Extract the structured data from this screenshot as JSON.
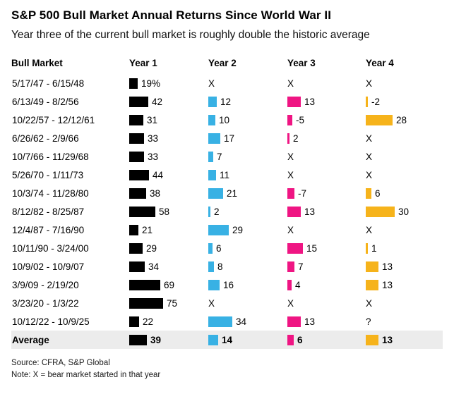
{
  "header": {
    "title": "S&P 500 Bull Market Annual Returns Since World War II",
    "subtitle": "Year three of the current bull market is roughly double the historic average"
  },
  "table": {
    "columns": [
      "Bull Market",
      "Year 1",
      "Year 2",
      "Year 3",
      "Year 4"
    ],
    "rows": [
      {
        "period": "5/17/47 - 6/15/48",
        "average": false,
        "cells": [
          {
            "v": 19,
            "d": "19%"
          },
          {
            "d": "X"
          },
          {
            "d": "X"
          },
          {
            "d": "X"
          }
        ]
      },
      {
        "period": "6/13/49 - 8/2/56",
        "average": false,
        "cells": [
          {
            "v": 42,
            "d": "42"
          },
          {
            "v": 12,
            "d": "12"
          },
          {
            "v": 13,
            "d": "13"
          },
          {
            "v": -2,
            "d": "-2"
          }
        ]
      },
      {
        "period": "10/22/57 - 12/12/61",
        "average": false,
        "cells": [
          {
            "v": 31,
            "d": "31"
          },
          {
            "v": 10,
            "d": "10"
          },
          {
            "v": -5,
            "d": "-5"
          },
          {
            "v": 28,
            "d": "28"
          }
        ]
      },
      {
        "period": "6/26/62 - 2/9/66",
        "average": false,
        "cells": [
          {
            "v": 33,
            "d": "33"
          },
          {
            "v": 17,
            "d": "17"
          },
          {
            "v": 2,
            "d": "2"
          },
          {
            "d": "X"
          }
        ]
      },
      {
        "period": "10/7/66 - 11/29/68",
        "average": false,
        "cells": [
          {
            "v": 33,
            "d": "33"
          },
          {
            "v": 7,
            "d": "7"
          },
          {
            "d": "X"
          },
          {
            "d": "X"
          }
        ]
      },
      {
        "period": "5/26/70 - 1/11/73",
        "average": false,
        "cells": [
          {
            "v": 44,
            "d": "44"
          },
          {
            "v": 11,
            "d": "11"
          },
          {
            "d": "X"
          },
          {
            "d": "X"
          }
        ]
      },
      {
        "period": "10/3/74 - 11/28/80",
        "average": false,
        "cells": [
          {
            "v": 38,
            "d": "38"
          },
          {
            "v": 21,
            "d": "21"
          },
          {
            "v": -7,
            "d": "-7"
          },
          {
            "v": 6,
            "d": "6"
          }
        ]
      },
      {
        "period": "8/12/82 - 8/25/87",
        "average": false,
        "cells": [
          {
            "v": 58,
            "d": "58"
          },
          {
            "v": 2,
            "d": "2"
          },
          {
            "v": 13,
            "d": "13"
          },
          {
            "v": 30,
            "d": "30"
          }
        ]
      },
      {
        "period": "12/4/87 - 7/16/90",
        "average": false,
        "cells": [
          {
            "v": 21,
            "d": "21"
          },
          {
            "v": 29,
            "d": "29"
          },
          {
            "d": "X"
          },
          {
            "d": "X"
          }
        ]
      },
      {
        "period": "10/11/90 - 3/24/00",
        "average": false,
        "cells": [
          {
            "v": 29,
            "d": "29"
          },
          {
            "v": 6,
            "d": "6"
          },
          {
            "v": 15,
            "d": "15"
          },
          {
            "v": 1,
            "d": "1"
          }
        ]
      },
      {
        "period": "10/9/02 - 10/9/07",
        "average": false,
        "cells": [
          {
            "v": 34,
            "d": "34"
          },
          {
            "v": 8,
            "d": "8"
          },
          {
            "v": 7,
            "d": "7"
          },
          {
            "v": 13,
            "d": "13"
          }
        ]
      },
      {
        "period": "3/9/09 - 2/19/20",
        "average": false,
        "cells": [
          {
            "v": 69,
            "d": "69"
          },
          {
            "v": 16,
            "d": "16"
          },
          {
            "v": 4,
            "d": "4"
          },
          {
            "v": 13,
            "d": "13"
          }
        ]
      },
      {
        "period": "3/23/20 - 1/3/22",
        "average": false,
        "cells": [
          {
            "v": 75,
            "d": "75"
          },
          {
            "d": "X"
          },
          {
            "d": "X"
          },
          {
            "d": "X"
          }
        ]
      },
      {
        "period": "10/12/22 - 10/9/25",
        "average": false,
        "cells": [
          {
            "v": 22,
            "d": "22"
          },
          {
            "v": 34,
            "d": "34"
          },
          {
            "v": 13,
            "d": "13"
          },
          {
            "d": "?"
          }
        ]
      },
      {
        "period": "Average",
        "average": true,
        "cells": [
          {
            "v": 39,
            "d": "39"
          },
          {
            "v": 14,
            "d": "14"
          },
          {
            "v": 6,
            "d": "6"
          },
          {
            "v": 13,
            "d": "13"
          }
        ]
      }
    ]
  },
  "colors": {
    "series": [
      "#000000",
      "#38b1e4",
      "#ef1583",
      "#f6b31b"
    ],
    "average_row_bg": "#ececec"
  },
  "footer": {
    "source": "Source: CFRA, S&P Global",
    "note": "Note: X = bear market started in that year"
  },
  "chart_data": {
    "type": "bar",
    "title": "S&P 500 Bull Market Annual Returns Since World War II",
    "subtitle": "Year three of the current bull market is roughly double the historic average",
    "categories": [
      "5/17/47 - 6/15/48",
      "6/13/49 - 8/2/56",
      "10/22/57 - 12/12/61",
      "6/26/62 - 2/9/66",
      "10/7/66 - 11/29/68",
      "5/26/70 - 1/11/73",
      "10/3/74 - 11/28/80",
      "8/12/82 - 8/25/87",
      "12/4/87 - 7/16/90",
      "10/11/90 - 3/24/00",
      "10/9/02 - 10/9/07",
      "3/9/09 - 2/19/20",
      "3/23/20 - 1/3/22",
      "10/12/22 - 10/9/25",
      "Average"
    ],
    "series": [
      {
        "name": "Year 1",
        "color": "#000000",
        "values": [
          19,
          42,
          31,
          33,
          33,
          44,
          38,
          58,
          21,
          29,
          34,
          69,
          75,
          22,
          39
        ]
      },
      {
        "name": "Year 2",
        "color": "#38b1e4",
        "values": [
          null,
          12,
          10,
          17,
          7,
          11,
          21,
          2,
          29,
          6,
          8,
          16,
          null,
          34,
          14
        ]
      },
      {
        "name": "Year 3",
        "color": "#ef1583",
        "values": [
          null,
          13,
          -5,
          2,
          null,
          null,
          -7,
          13,
          null,
          15,
          7,
          4,
          null,
          13,
          6
        ]
      },
      {
        "name": "Year 4",
        "color": "#f6b31b",
        "values": [
          null,
          -2,
          28,
          null,
          null,
          null,
          6,
          30,
          null,
          1,
          13,
          13,
          null,
          null,
          13
        ]
      }
    ],
    "annotations": {
      "missing_marker": "X",
      "unknown_marker": "?",
      "missing_meaning": "bear market started in that year"
    },
    "layout": {
      "orientation": "horizontal",
      "grid": false,
      "legend": "none",
      "values_labeled": true
    }
  }
}
